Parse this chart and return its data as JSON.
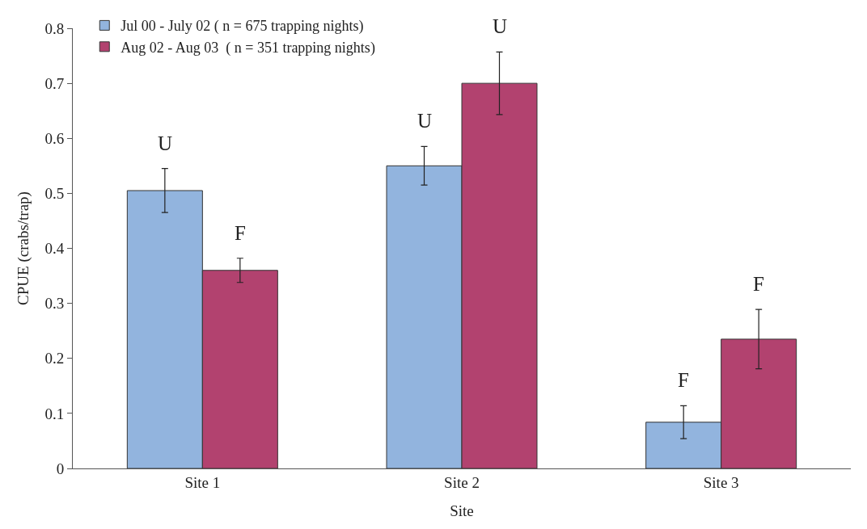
{
  "chart_data": {
    "type": "bar",
    "xlabel": "Site",
    "ylabel": "CPUE (crabs/trap)",
    "categories": [
      "Site 1",
      "Site 2",
      "Site 3"
    ],
    "series": [
      {
        "name": "Jul 00 - July 02 ( n = 675 trapping nights)",
        "color": "#92b4de",
        "values": [
          0.505,
          0.55,
          0.084
        ],
        "errors": [
          0.04,
          0.035,
          0.03
        ]
      },
      {
        "name": "Aug 02 - Aug 03  ( n = 351 trapping nights)",
        "color": "#b2426f",
        "values": [
          0.36,
          0.7,
          0.235
        ],
        "errors": [
          0.022,
          0.057,
          0.054
        ]
      }
    ],
    "annotations": [
      {
        "text": "U",
        "x": "Site 1",
        "y": 0.505
      },
      {
        "text": "F",
        "x": "Site 1",
        "y": 0.36
      },
      {
        "text": "U",
        "x": "Site 2",
        "y": 0.55
      },
      {
        "text": "U",
        "x": "Site 2",
        "y": 0.7
      },
      {
        "text": "F",
        "x": "Site 3",
        "y": 0.084
      },
      {
        "text": "F",
        "x": "Site 3",
        "y": 0.235
      }
    ],
    "ylim": [
      0,
      0.8
    ],
    "yticks": [
      0,
      0.1,
      0.2,
      0.3,
      0.4,
      0.5,
      0.6,
      0.7,
      0.8
    ],
    "grid": false,
    "legend": "top left"
  }
}
